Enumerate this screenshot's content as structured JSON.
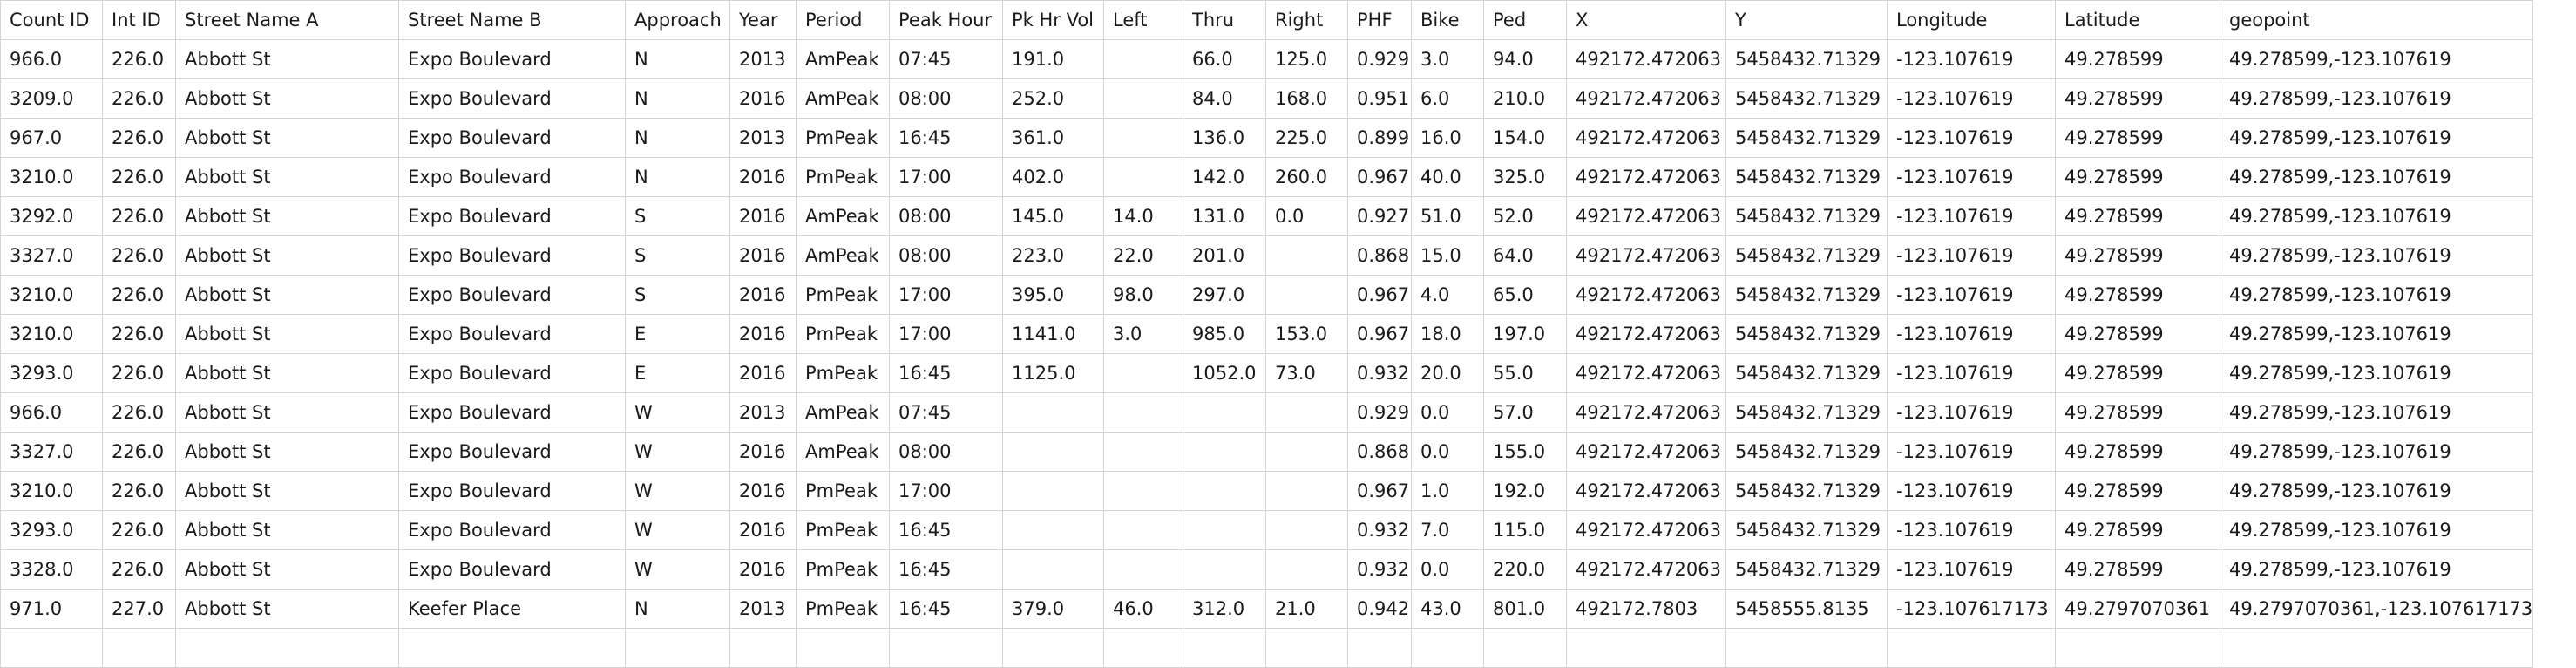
{
  "table": {
    "columns": [
      "Count ID",
      "Int ID",
      "Street Name A",
      "Street Name B",
      "Approach",
      "Year",
      "Period",
      "Peak Hour",
      "Pk Hr Vol",
      "Left",
      "Thru",
      "Right",
      "PHF",
      "Bike",
      "Ped",
      "X",
      "Y",
      "Longitude",
      "Latitude",
      "geopoint"
    ],
    "rows": [
      [
        "966.0",
        "226.0",
        "Abbott St",
        "Expo Boulevard",
        "N",
        "2013",
        "AmPeak",
        "07:45",
        "191.0",
        "",
        "66.0",
        "125.0",
        "0.929",
        "3.0",
        "94.0",
        "492172.472063",
        "5458432.71329",
        "-123.107619",
        "49.278599",
        "49.278599,-123.107619"
      ],
      [
        "3209.0",
        "226.0",
        "Abbott St",
        "Expo Boulevard",
        "N",
        "2016",
        "AmPeak",
        "08:00",
        "252.0",
        "",
        "84.0",
        "168.0",
        "0.951",
        "6.0",
        "210.0",
        "492172.472063",
        "5458432.71329",
        "-123.107619",
        "49.278599",
        "49.278599,-123.107619"
      ],
      [
        "967.0",
        "226.0",
        "Abbott St",
        "Expo Boulevard",
        "N",
        "2013",
        "PmPeak",
        "16:45",
        "361.0",
        "",
        "136.0",
        "225.0",
        "0.899",
        "16.0",
        "154.0",
        "492172.472063",
        "5458432.71329",
        "-123.107619",
        "49.278599",
        "49.278599,-123.107619"
      ],
      [
        "3210.0",
        "226.0",
        "Abbott St",
        "Expo Boulevard",
        "N",
        "2016",
        "PmPeak",
        "17:00",
        "402.0",
        "",
        "142.0",
        "260.0",
        "0.967",
        "40.0",
        "325.0",
        "492172.472063",
        "5458432.71329",
        "-123.107619",
        "49.278599",
        "49.278599,-123.107619"
      ],
      [
        "3292.0",
        "226.0",
        "Abbott St",
        "Expo Boulevard",
        "S",
        "2016",
        "AmPeak",
        "08:00",
        "145.0",
        "14.0",
        "131.0",
        "0.0",
        "0.927",
        "51.0",
        "52.0",
        "492172.472063",
        "5458432.71329",
        "-123.107619",
        "49.278599",
        "49.278599,-123.107619"
      ],
      [
        "3327.0",
        "226.0",
        "Abbott St",
        "Expo Boulevard",
        "S",
        "2016",
        "AmPeak",
        "08:00",
        "223.0",
        "22.0",
        "201.0",
        "",
        "0.868",
        "15.0",
        "64.0",
        "492172.472063",
        "5458432.71329",
        "-123.107619",
        "49.278599",
        "49.278599,-123.107619"
      ],
      [
        "3210.0",
        "226.0",
        "Abbott St",
        "Expo Boulevard",
        "S",
        "2016",
        "PmPeak",
        "17:00",
        "395.0",
        "98.0",
        "297.0",
        "",
        "0.967",
        "4.0",
        "65.0",
        "492172.472063",
        "5458432.71329",
        "-123.107619",
        "49.278599",
        "49.278599,-123.107619"
      ],
      [
        "3210.0",
        "226.0",
        "Abbott St",
        "Expo Boulevard",
        "E",
        "2016",
        "PmPeak",
        "17:00",
        "1141.0",
        "3.0",
        "985.0",
        "153.0",
        "0.967",
        "18.0",
        "197.0",
        "492172.472063",
        "5458432.71329",
        "-123.107619",
        "49.278599",
        "49.278599,-123.107619"
      ],
      [
        "3293.0",
        "226.0",
        "Abbott St",
        "Expo Boulevard",
        "E",
        "2016",
        "PmPeak",
        "16:45",
        "1125.0",
        "",
        "1052.0",
        "73.0",
        "0.932",
        "20.0",
        "55.0",
        "492172.472063",
        "5458432.71329",
        "-123.107619",
        "49.278599",
        "49.278599,-123.107619"
      ],
      [
        "966.0",
        "226.0",
        "Abbott St",
        "Expo Boulevard",
        "W",
        "2013",
        "AmPeak",
        "07:45",
        "",
        "",
        "",
        "",
        "0.929",
        "0.0",
        "57.0",
        "492172.472063",
        "5458432.71329",
        "-123.107619",
        "49.278599",
        "49.278599,-123.107619"
      ],
      [
        "3327.0",
        "226.0",
        "Abbott St",
        "Expo Boulevard",
        "W",
        "2016",
        "AmPeak",
        "08:00",
        "",
        "",
        "",
        "",
        "0.868",
        "0.0",
        "155.0",
        "492172.472063",
        "5458432.71329",
        "-123.107619",
        "49.278599",
        "49.278599,-123.107619"
      ],
      [
        "3210.0",
        "226.0",
        "Abbott St",
        "Expo Boulevard",
        "W",
        "2016",
        "PmPeak",
        "17:00",
        "",
        "",
        "",
        "",
        "0.967",
        "1.0",
        "192.0",
        "492172.472063",
        "5458432.71329",
        "-123.107619",
        "49.278599",
        "49.278599,-123.107619"
      ],
      [
        "3293.0",
        "226.0",
        "Abbott St",
        "Expo Boulevard",
        "W",
        "2016",
        "PmPeak",
        "16:45",
        "",
        "",
        "",
        "",
        "0.932",
        "7.0",
        "115.0",
        "492172.472063",
        "5458432.71329",
        "-123.107619",
        "49.278599",
        "49.278599,-123.107619"
      ],
      [
        "3328.0",
        "226.0",
        "Abbott St",
        "Expo Boulevard",
        "W",
        "2016",
        "PmPeak",
        "16:45",
        "",
        "",
        "",
        "",
        "0.932",
        "0.0",
        "220.0",
        "492172.472063",
        "5458432.71329",
        "-123.107619",
        "49.278599",
        "49.278599,-123.107619"
      ],
      [
        "971.0",
        "227.0",
        "Abbott St",
        "Keefer Place",
        "N",
        "2013",
        "PmPeak",
        "16:45",
        "379.0",
        "46.0",
        "312.0",
        "21.0",
        "0.942",
        "43.0",
        "801.0",
        "492172.7803",
        "5458555.8135",
        "-123.107617173",
        "49.2797070361",
        "49.2797070361,-123.107617173"
      ],
      [
        "",
        "",
        "",
        "",
        "",
        "",
        "",
        "",
        "",
        "",
        "",
        "",
        "",
        "",
        "",
        "",
        "",
        "",
        "",
        ""
      ]
    ]
  }
}
